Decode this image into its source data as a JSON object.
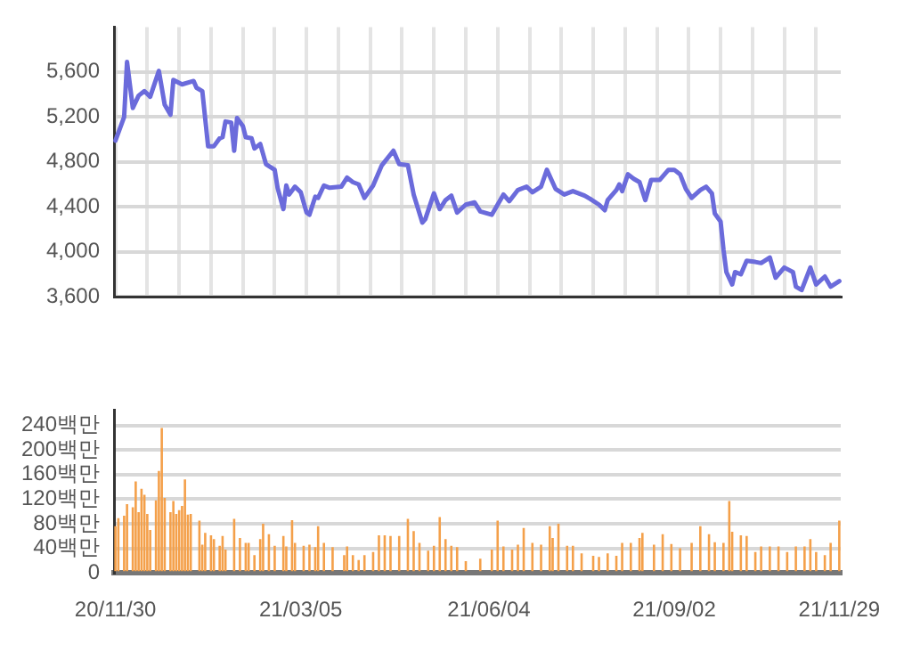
{
  "chart_data": [
    {
      "type": "line",
      "grid": true,
      "categories": [
        null,
        null,
        null,
        null,
        null,
        null,
        null,
        null,
        null,
        null,
        null,
        null,
        null,
        null,
        null,
        null,
        null,
        null,
        null,
        null,
        null,
        null,
        null,
        null,
        null,
        null,
        null,
        null,
        null,
        null,
        null,
        null,
        null,
        null,
        null,
        null,
        null,
        null,
        null,
        null,
        null,
        null,
        null,
        null,
        null,
        null,
        null,
        null,
        null,
        null,
        null,
        null,
        null,
        null,
        null,
        null,
        null,
        null,
        null,
        null,
        null,
        null,
        null,
        null,
        null,
        null,
        null,
        null,
        null,
        null,
        null,
        null,
        null,
        null,
        null,
        null,
        null,
        null,
        null,
        null,
        null,
        null,
        null,
        null,
        null,
        null,
        null,
        null,
        null,
        null,
        null,
        null,
        null,
        null,
        null,
        null,
        null,
        null,
        null,
        null,
        null,
        null,
        null,
        null,
        null,
        null,
        null,
        null,
        null,
        null,
        null,
        null,
        null,
        null,
        null,
        null,
        null,
        null,
        null,
        null,
        null,
        null,
        null,
        null,
        null,
        null,
        null,
        null,
        null,
        null,
        null,
        null,
        null,
        null,
        null,
        null,
        null,
        null,
        null,
        null,
        null,
        null,
        null,
        null,
        null,
        null,
        null,
        null,
        null,
        null,
        null,
        null,
        null,
        null,
        null,
        null,
        null,
        null,
        null,
        null,
        null,
        null,
        null,
        null,
        null,
        null,
        null,
        null,
        null,
        null,
        null,
        null,
        null,
        null,
        null,
        null,
        null,
        null,
        null,
        null,
        null,
        null,
        null,
        null,
        null,
        null,
        null,
        null,
        null,
        null,
        null,
        null,
        null,
        null,
        null,
        null,
        null,
        null,
        null,
        null,
        null,
        null,
        null,
        null,
        null,
        null,
        null,
        null,
        null,
        null,
        null,
        null,
        null,
        null,
        null,
        null,
        null,
        null,
        null,
        null,
        null,
        null,
        null,
        null,
        null,
        null,
        null,
        null,
        null,
        null,
        null,
        null,
        null,
        null,
        null,
        null,
        null,
        null,
        null,
        null,
        null,
        null,
        null,
        null,
        null,
        null,
        null,
        null,
        null,
        null,
        null
      ],
      "ylim": [
        3600,
        6000
      ],
      "yticks": [
        {
          "value": 3600,
          "label": "3,600"
        },
        {
          "value": 4000,
          "label": "4,000"
        },
        {
          "value": 4400,
          "label": "4,400"
        },
        {
          "value": 4800,
          "label": "4,800"
        },
        {
          "value": 5200,
          "label": "5,200"
        },
        {
          "value": 5600,
          "label": "5,600"
        }
      ],
      "color": "#6b6bdb",
      "values": [
        4990,
        null,
        null,
        5200,
        5690,
        null,
        5280,
        null,
        5390,
        null,
        5430,
        null,
        5380,
        null,
        null,
        5610,
        null,
        5310,
        null,
        5220,
        5530,
        null,
        null,
        5490,
        null,
        null,
        null,
        5520,
        5460,
        null,
        5430,
        null,
        4940,
        null,
        4940,
        null,
        5010,
        5020,
        5160,
        null,
        5150,
        4900,
        5190,
        null,
        5120,
        5020,
        null,
        5010,
        4920,
        null,
        4960,
        null,
        4780,
        null,
        null,
        4730,
        4570,
        null,
        4380,
        4590,
        4510,
        null,
        4580,
        null,
        4530,
        null,
        4350,
        4330,
        null,
        4490,
        4480,
        null,
        4590,
        null,
        4570,
        null,
        null,
        null,
        4580,
        null,
        4660,
        null,
        4620,
        null,
        4600,
        null,
        4480,
        null,
        null,
        4590,
        null,
        null,
        4770,
        null,
        null,
        null,
        4900,
        null,
        4780,
        null,
        null,
        4770,
        null,
        4510,
        null,
        null,
        4260,
        4290,
        null,
        null,
        4520,
        null,
        4380,
        null,
        4460,
        null,
        4500,
        null,
        4350,
        null,
        null,
        4420,
        null,
        null,
        4440,
        null,
        4360,
        null,
        null,
        null,
        4330,
        null,
        4420,
        null,
        4510,
        null,
        4450,
        null,
        null,
        4550,
        null,
        null,
        4580,
        null,
        4530,
        null,
        null,
        4580,
        null,
        4730,
        null,
        null,
        4560,
        null,
        null,
        4510,
        null,
        null,
        4540,
        null,
        null,
        null,
        4500,
        null,
        4470,
        null,
        null,
        4420,
        null,
        4370,
        4460,
        null,
        null,
        4550,
        4600,
        4540,
        null,
        4690,
        null,
        4650,
        null,
        4620,
        null,
        4460,
        null,
        4640,
        null,
        null,
        4640,
        null,
        null,
        4730,
        null,
        4730,
        null,
        4690,
        null,
        4560,
        null,
        4480,
        null,
        null,
        4550,
        null,
        4580,
        null,
        4520,
        4340,
        null,
        4270,
        4020,
        3820,
        null,
        3710,
        3820,
        null,
        3800,
        null,
        3920,
        null,
        null,
        3910,
        null,
        3900,
        null,
        null,
        3950,
        null,
        3770,
        null,
        null,
        3860,
        null,
        null,
        3820,
        3690,
        null,
        3660,
        null,
        null,
        3860,
        null,
        3710,
        null,
        null,
        3780,
        null,
        3690,
        null,
        null,
        3740
      ]
    },
    {
      "type": "bar",
      "grid": "y",
      "categories": [
        "20/11/30",
        null,
        null,
        null,
        null,
        null,
        null,
        null,
        null,
        null,
        null,
        null,
        null,
        null,
        null,
        null,
        null,
        null,
        null,
        null,
        null,
        null,
        null,
        null,
        null,
        null,
        null,
        null,
        null,
        null,
        null,
        null,
        null,
        null,
        null,
        null,
        null,
        null,
        null,
        null,
        null,
        null,
        null,
        null,
        null,
        null,
        null,
        null,
        null,
        null,
        null,
        null,
        null,
        null,
        null,
        null,
        null,
        null,
        null,
        null,
        null,
        null,
        null,
        null,
        "21/03/05",
        null,
        null,
        null,
        null,
        null,
        null,
        null,
        null,
        null,
        null,
        null,
        null,
        null,
        null,
        null,
        null,
        null,
        null,
        null,
        null,
        null,
        null,
        null,
        null,
        null,
        null,
        null,
        null,
        null,
        null,
        null,
        null,
        null,
        null,
        null,
        null,
        null,
        null,
        null,
        null,
        null,
        null,
        null,
        null,
        null,
        null,
        null,
        null,
        null,
        null,
        null,
        null,
        null,
        null,
        null,
        null,
        null,
        null,
        null,
        null,
        null,
        null,
        null,
        null,
        "21/06/04",
        null,
        null,
        null,
        null,
        null,
        null,
        null,
        null,
        null,
        null,
        null,
        null,
        null,
        null,
        null,
        null,
        null,
        null,
        null,
        null,
        null,
        null,
        null,
        null,
        null,
        null,
        null,
        null,
        null,
        null,
        null,
        null,
        null,
        null,
        null,
        null,
        null,
        null,
        null,
        null,
        null,
        null,
        null,
        null,
        null,
        null,
        null,
        null,
        null,
        null,
        null,
        null,
        null,
        null,
        null,
        null,
        null,
        null,
        null,
        null,
        null,
        null,
        null,
        "21/09/02",
        null,
        null,
        null,
        null,
        null,
        null,
        null,
        null,
        null,
        null,
        null,
        null,
        null,
        null,
        null,
        null,
        null,
        null,
        null,
        null,
        null,
        null,
        null,
        null,
        null,
        null,
        null,
        null,
        null,
        null,
        null,
        null,
        null,
        null,
        null,
        null,
        null,
        null,
        null,
        null,
        null,
        null,
        null,
        null,
        null,
        null,
        null,
        null,
        null,
        null,
        null,
        null,
        null,
        null,
        null,
        null,
        "21/11/29"
      ],
      "ylim": [
        0,
        265
      ],
      "yticks": [
        0,
        {
          "value": 40,
          "label": "40백만"
        },
        {
          "value": 80,
          "label": "80백만"
        },
        {
          "value": 120,
          "label": "120백만"
        },
        {
          "value": 160,
          "label": "160백만"
        },
        {
          "value": 200,
          "label": "200백만"
        },
        {
          "value": 240,
          "label": "240백만"
        }
      ],
      "color": "#f4a04a",
      "values": [
        76,
        89,
        null,
        93,
        112,
        null,
        107,
        149,
        99,
        137,
        127,
        96,
        70,
        null,
        118,
        166,
        236,
        122,
        null,
        99,
        117,
        96,
        102,
        109,
        152,
        95,
        96,
        null,
        null,
        85,
        46,
        65,
        null,
        61,
        55,
        null,
        44,
        60,
        38,
        null,
        null,
        88,
        null,
        57,
        null,
        49,
        49,
        null,
        29,
        null,
        55,
        80,
        null,
        63,
        null,
        44,
        null,
        null,
        60,
        43,
        null,
        86,
        49,
        null,
        null,
        44,
        null,
        46,
        null,
        42,
        76,
        null,
        49,
        null,
        null,
        42,
        null,
        null,
        null,
        29,
        43,
        null,
        29,
        null,
        21,
        null,
        29,
        null,
        null,
        34,
        null,
        61,
        null,
        61,
        null,
        60,
        null,
        null,
        60,
        null,
        null,
        88,
        null,
        68,
        null,
        49,
        null,
        null,
        36,
        null,
        44,
        null,
        91,
        null,
        55,
        null,
        44,
        null,
        42,
        null,
        null,
        19,
        null,
        null,
        null,
        null,
        23,
        null,
        null,
        null,
        38,
        null,
        85,
        null,
        43,
        null,
        null,
        38,
        null,
        46,
        null,
        73,
        null,
        null,
        49,
        null,
        null,
        46,
        null,
        null,
        76,
        57,
        null,
        80,
        null,
        null,
        44,
        null,
        44,
        null,
        null,
        32,
        null,
        null,
        null,
        28,
        null,
        26,
        null,
        null,
        32,
        null,
        null,
        28,
        null,
        49,
        null,
        null,
        49,
        null,
        null,
        57,
        65,
        null,
        null,
        null,
        46,
        null,
        null,
        63,
        null,
        null,
        47,
        null,
        null,
        40,
        null,
        null,
        null,
        49,
        null,
        null,
        76,
        null,
        null,
        63,
        null,
        50,
        null,
        null,
        49,
        null,
        117,
        67,
        null,
        null,
        61,
        null,
        60,
        null,
        null,
        34,
        null,
        43,
        null,
        null,
        43,
        null,
        null,
        43,
        null,
        null,
        34,
        null,
        null,
        43,
        null,
        null,
        43,
        null,
        55,
        null,
        34,
        null,
        null,
        29,
        null,
        49,
        null,
        null,
        85
      ]
    }
  ]
}
